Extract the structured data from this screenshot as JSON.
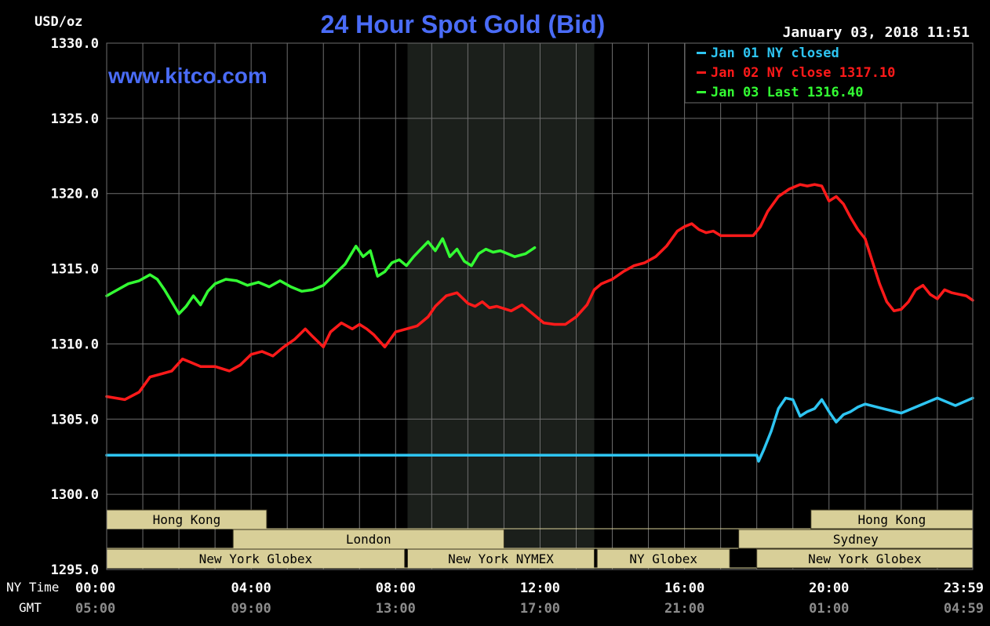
{
  "header": {
    "title": "24 Hour Spot Gold (Bid)",
    "unit": "USD/oz",
    "timestamp": "January 03, 2018 11:51",
    "watermark": "www.kitco.com"
  },
  "axis_row_labels": {
    "ny_time": "NY Time",
    "gmt": "GMT"
  },
  "colors": {
    "background": "#000000",
    "grid": "#6e6e6e",
    "title": "#4a6cf7",
    "jan01": "#2ec5f2",
    "jan02": "#ff1a1a",
    "jan03": "#33ff33",
    "nymex_shade": "#1b1f1b",
    "session_fill": "#d8cf98"
  },
  "sessions": [
    {
      "label": "Hong Kong",
      "start": 0.0,
      "end": 4.43,
      "row": 0
    },
    {
      "label": "Hong Kong",
      "start": 19.5,
      "end": 23.98,
      "row": 0
    },
    {
      "label": "London",
      "start": 3.5,
      "end": 11.0,
      "row": 1
    },
    {
      "label": "Sydney",
      "start": 17.5,
      "end": 23.98,
      "row": 1
    },
    {
      "label": "New York Globex",
      "start": 0.0,
      "end": 8.25,
      "row": 2
    },
    {
      "label": "New York NYMEX",
      "start": 8.33,
      "end": 13.5,
      "row": 2
    },
    {
      "label": "NY Globex",
      "start": 13.58,
      "end": 17.25,
      "row": 2
    },
    {
      "label": "New York Globex",
      "start": 18.0,
      "end": 23.98,
      "row": 2
    }
  ],
  "chart_data": {
    "type": "line",
    "title": "24 Hour Spot Gold (Bid)",
    "ylabel": "USD/oz",
    "xlabel": "",
    "ylim": [
      1295,
      1330
    ],
    "yticks": [
      1295,
      1300,
      1305,
      1310,
      1315,
      1320,
      1325,
      1330
    ],
    "ytick_labels": [
      "1295.0",
      "1300.0",
      "1305.0",
      "1310.0",
      "1315.0",
      "1320.0",
      "1325.0",
      "1330.0"
    ],
    "xlim": [
      0,
      23.98
    ],
    "xticks": [
      0,
      4,
      8,
      12,
      16,
      20,
      23.98
    ],
    "xtick_labels_ny": [
      "00:00",
      "04:00",
      "08:00",
      "12:00",
      "16:00",
      "20:00",
      "23:59"
    ],
    "xtick_labels_gmt": [
      "05:00",
      "09:00",
      "13:00",
      "17:00",
      "21:00",
      "01:00",
      "04:59"
    ],
    "grid": true,
    "shaded_region": {
      "start": 8.33,
      "end": 13.5
    },
    "legend_position": "top-right",
    "series": [
      {
        "name": "Jan 01 NY closed",
        "legend": "Jan 01 NY closed",
        "color": "#2ec5f2",
        "x": [
          0,
          18.0,
          18.05,
          18.2,
          18.4,
          18.6,
          18.8,
          19.0,
          19.2,
          19.4,
          19.6,
          19.8,
          20.0,
          20.2,
          20.4,
          20.6,
          20.8,
          21.0,
          21.5,
          22.0,
          22.5,
          23.0,
          23.5,
          23.98
        ],
        "y": [
          1302.6,
          1302.6,
          1302.2,
          1303.0,
          1304.2,
          1305.7,
          1306.4,
          1306.3,
          1305.2,
          1305.5,
          1305.7,
          1306.3,
          1305.5,
          1304.8,
          1305.3,
          1305.5,
          1305.8,
          1306.0,
          1305.7,
          1305.4,
          1305.9,
          1306.4,
          1305.9,
          1306.4
        ]
      },
      {
        "name": "Jan 02 NY close",
        "legend": "Jan 02 NY close 1317.10",
        "color": "#ff1a1a",
        "x": [
          0,
          0.5,
          0.9,
          1.2,
          1.5,
          1.8,
          2.1,
          2.3,
          2.6,
          3.0,
          3.4,
          3.7,
          4.0,
          4.3,
          4.6,
          4.9,
          5.2,
          5.5,
          5.7,
          6.0,
          6.2,
          6.5,
          6.8,
          7.0,
          7.2,
          7.4,
          7.7,
          8.0,
          8.3,
          8.6,
          8.9,
          9.1,
          9.4,
          9.7,
          10.0,
          10.2,
          10.4,
          10.6,
          10.8,
          11.2,
          11.5,
          11.8,
          12.1,
          12.4,
          12.7,
          13.0,
          13.3,
          13.5,
          13.7,
          14.0,
          14.3,
          14.6,
          14.9,
          15.2,
          15.5,
          15.8,
          16.0,
          16.2,
          16.4,
          16.6,
          16.8,
          17.0,
          17.3,
          17.6,
          17.9,
          18.1,
          18.3,
          18.6,
          18.9,
          19.2,
          19.4,
          19.6,
          19.8,
          20.0,
          20.2,
          20.4,
          20.6,
          20.8,
          21.0,
          21.2,
          21.4,
          21.6,
          21.8,
          22.0,
          22.2,
          22.4,
          22.6,
          22.8,
          23.0,
          23.2,
          23.4,
          23.6,
          23.8,
          23.98
        ],
        "y": [
          1306.5,
          1306.3,
          1306.8,
          1307.8,
          1308.0,
          1308.2,
          1309.0,
          1308.8,
          1308.5,
          1308.5,
          1308.2,
          1308.6,
          1309.3,
          1309.5,
          1309.2,
          1309.8,
          1310.3,
          1311.0,
          1310.5,
          1309.8,
          1310.8,
          1311.4,
          1311.0,
          1311.3,
          1311.0,
          1310.6,
          1309.8,
          1310.8,
          1311.0,
          1311.2,
          1311.8,
          1312.5,
          1313.2,
          1313.4,
          1312.7,
          1312.5,
          1312.8,
          1312.4,
          1312.5,
          1312.2,
          1312.6,
          1312.0,
          1311.4,
          1311.3,
          1311.3,
          1311.8,
          1312.6,
          1313.6,
          1314.0,
          1314.3,
          1314.8,
          1315.2,
          1315.4,
          1315.8,
          1316.5,
          1317.5,
          1317.8,
          1318.0,
          1317.6,
          1317.4,
          1317.5,
          1317.2,
          1317.2,
          1317.2,
          1317.2,
          1317.8,
          1318.8,
          1319.8,
          1320.3,
          1320.6,
          1320.5,
          1320.6,
          1320.5,
          1319.5,
          1319.8,
          1319.3,
          1318.4,
          1317.6,
          1317.0,
          1315.5,
          1314.0,
          1312.8,
          1312.2,
          1312.3,
          1312.8,
          1313.6,
          1313.9,
          1313.3,
          1313.0,
          1313.6,
          1313.4,
          1313.3,
          1313.2,
          1312.9
        ]
      },
      {
        "name": "Jan 03 Last",
        "legend": "Jan 03 Last 1316.40",
        "color": "#33ff33",
        "x": [
          0,
          0.3,
          0.6,
          0.9,
          1.2,
          1.4,
          1.6,
          1.8,
          2.0,
          2.2,
          2.4,
          2.6,
          2.8,
          3.0,
          3.3,
          3.6,
          3.9,
          4.2,
          4.5,
          4.8,
          5.1,
          5.4,
          5.7,
          6.0,
          6.3,
          6.6,
          6.9,
          7.1,
          7.3,
          7.5,
          7.7,
          7.9,
          8.1,
          8.3,
          8.5,
          8.7,
          8.9,
          9.1,
          9.3,
          9.5,
          9.7,
          9.9,
          10.1,
          10.3,
          10.5,
          10.7,
          10.9,
          11.1,
          11.3,
          11.6,
          11.85
        ],
        "y": [
          1313.2,
          1313.6,
          1314.0,
          1314.2,
          1314.6,
          1314.3,
          1313.6,
          1312.8,
          1312.0,
          1312.5,
          1313.2,
          1312.6,
          1313.5,
          1314.0,
          1314.3,
          1314.2,
          1313.9,
          1314.1,
          1313.8,
          1314.2,
          1313.8,
          1313.5,
          1313.6,
          1313.9,
          1314.6,
          1315.3,
          1316.5,
          1315.8,
          1316.2,
          1314.5,
          1314.8,
          1315.4,
          1315.6,
          1315.2,
          1315.8,
          1316.3,
          1316.8,
          1316.2,
          1317.0,
          1315.8,
          1316.3,
          1315.5,
          1315.2,
          1316.0,
          1316.3,
          1316.1,
          1316.2,
          1316.0,
          1315.8,
          1316.0,
          1316.4
        ]
      }
    ]
  }
}
